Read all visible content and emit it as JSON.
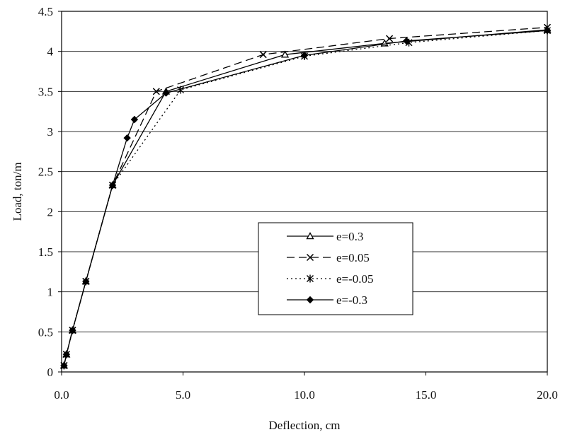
{
  "chart_data": {
    "type": "line",
    "xlabel": "Deflection, cm",
    "ylabel": "Load, ton/m",
    "xlim": [
      0,
      20
    ],
    "ylim": [
      0,
      4.5
    ],
    "x_ticks": [
      "0.0",
      "5.0",
      "10.0",
      "15.0",
      "20.0"
    ],
    "y_ticks": [
      "0",
      "0.5",
      "1",
      "1.5",
      "2",
      "2.5",
      "3",
      "3.5",
      "4",
      "4.5"
    ],
    "grid": "horizontal",
    "legend_position": "center-right",
    "series": [
      {
        "name": "e=0.3",
        "line_style": "solid",
        "marker": "triangle",
        "points": [
          [
            0.1,
            0.08
          ],
          [
            0.2,
            0.22
          ],
          [
            0.45,
            0.52
          ],
          [
            1.0,
            1.13
          ],
          [
            2.1,
            2.33
          ],
          [
            4.3,
            3.5
          ],
          [
            9.2,
            3.96
          ],
          [
            13.3,
            4.1
          ],
          [
            20.0,
            4.27
          ]
        ]
      },
      {
        "name": "e=0.05",
        "line_style": "dashed",
        "marker": "x",
        "points": [
          [
            0.1,
            0.08
          ],
          [
            0.2,
            0.22
          ],
          [
            0.45,
            0.52
          ],
          [
            1.0,
            1.13
          ],
          [
            2.1,
            2.33
          ],
          [
            3.9,
            3.5
          ],
          [
            8.3,
            3.96
          ],
          [
            13.5,
            4.16
          ],
          [
            20.0,
            4.3
          ]
        ]
      },
      {
        "name": "e=-0.05",
        "line_style": "dotted",
        "marker": "asterisk",
        "points": [
          [
            0.1,
            0.08
          ],
          [
            0.2,
            0.22
          ],
          [
            0.45,
            0.52
          ],
          [
            1.0,
            1.13
          ],
          [
            2.1,
            2.33
          ],
          [
            4.9,
            3.52
          ],
          [
            10.0,
            3.94
          ],
          [
            14.3,
            4.11
          ],
          [
            20.0,
            4.26
          ]
        ]
      },
      {
        "name": "e=-0.3",
        "line_style": "solid",
        "marker": "diamond",
        "points": [
          [
            0.1,
            0.08
          ],
          [
            0.2,
            0.22
          ],
          [
            0.45,
            0.52
          ],
          [
            1.0,
            1.13
          ],
          [
            2.1,
            2.33
          ],
          [
            2.7,
            2.92
          ],
          [
            3.0,
            3.15
          ],
          [
            4.3,
            3.48
          ],
          [
            10.0,
            3.95
          ],
          [
            14.2,
            4.13
          ],
          [
            20.0,
            4.26
          ]
        ]
      }
    ]
  }
}
